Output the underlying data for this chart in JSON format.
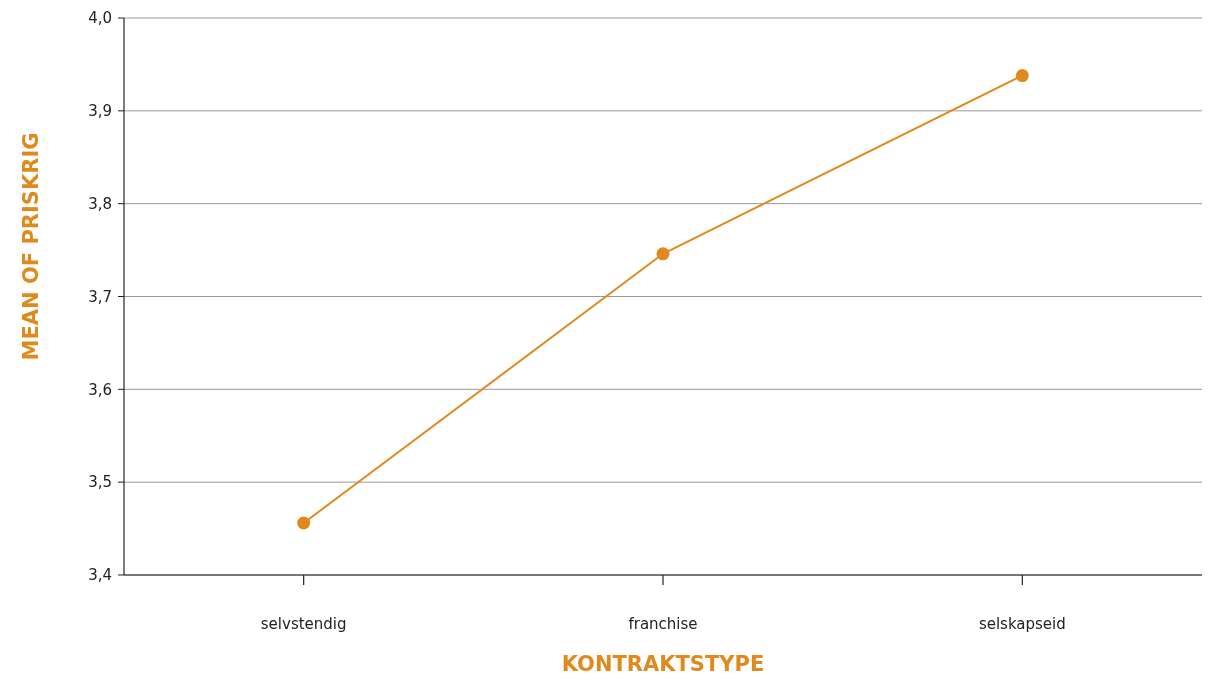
{
  "chart_data": {
    "type": "line",
    "xlabel": "KONTRAKTSTYPE",
    "ylabel": "MEAN OF PRISKRIG",
    "categories": [
      "selvstendig",
      "franchise",
      "selskapseid"
    ],
    "series": [
      {
        "color": "#e08a1e",
        "values": [
          3.456,
          3.746,
          3.938
        ]
      }
    ],
    "ylim": [
      3.4,
      4.0
    ],
    "yticks": [
      {
        "value": 3.4,
        "label": "3,4"
      },
      {
        "value": 3.5,
        "label": "3,5"
      },
      {
        "value": 3.6,
        "label": "3,6"
      },
      {
        "value": 3.7,
        "label": "3,7"
      },
      {
        "value": 3.8,
        "label": "3,8"
      },
      {
        "value": 3.9,
        "label": "3,9"
      },
      {
        "value": 4.0,
        "label": "4,0"
      }
    ],
    "grid": "y",
    "marker": "circle",
    "line_style": "solid"
  }
}
